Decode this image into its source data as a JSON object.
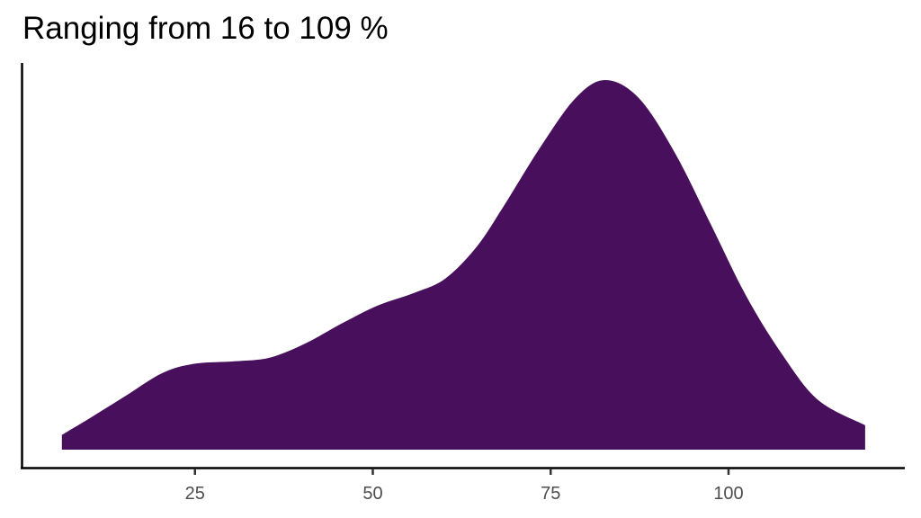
{
  "chart_data": {
    "type": "area",
    "subtype": "density",
    "title": "Ranging from 16 to 109 %",
    "xlabel": "",
    "ylabel": "",
    "xlim": [
      0,
      124
    ],
    "x_ticks": [
      25,
      50,
      75,
      100
    ],
    "x_tick_labels": [
      "25",
      "50",
      "75",
      "100"
    ],
    "y_ticks": [],
    "grid": false,
    "legend": null,
    "fill_color": "#48105c",
    "series": [
      {
        "name": "density",
        "x": [
          6.3,
          10.2,
          15.3,
          20.4,
          24.8,
          30.5,
          35.5,
          40.6,
          45.6,
          50.7,
          55.8,
          60.2,
          64.6,
          68.4,
          73.5,
          78.5,
          82.7,
          87.4,
          92.4,
          97.5,
          102.5,
          107.6,
          112.6,
          119.2
        ],
        "y": [
          0.04,
          0.085,
          0.146,
          0.207,
          0.232,
          0.239,
          0.249,
          0.288,
          0.341,
          0.39,
          0.424,
          0.463,
          0.549,
          0.659,
          0.817,
          0.951,
          1.0,
          0.951,
          0.805,
          0.61,
          0.415,
          0.256,
          0.134,
          0.066
        ]
      }
    ]
  },
  "axes": {
    "x_tick_labels": [
      "25",
      "50",
      "75",
      "100"
    ]
  }
}
